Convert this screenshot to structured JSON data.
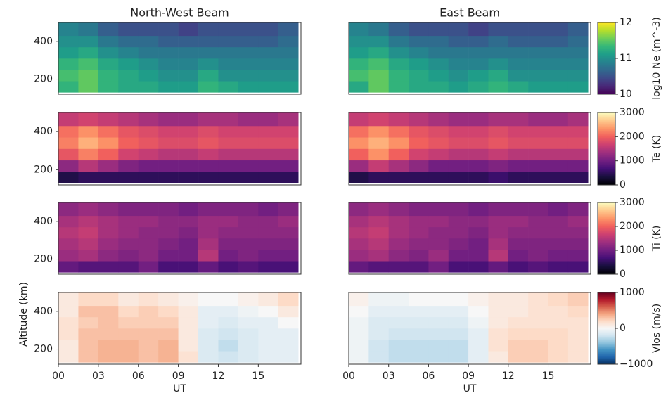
{
  "chart_data": [
    {
      "type": "heatmap",
      "title": "North-West Beam",
      "colormap": "viridis",
      "clim": [
        10,
        12
      ],
      "x": [
        0,
        1.5,
        3,
        4.5,
        6,
        7.5,
        9,
        10.5,
        12,
        13.5,
        15,
        16.5,
        18
      ],
      "y": [
        130,
        190,
        250,
        310,
        370,
        430,
        500
      ],
      "xlim": [
        0,
        18.2
      ],
      "ylim": [
        120,
        500
      ],
      "yticks": [
        200,
        400
      ],
      "values": [
        [
          11.3,
          11.5,
          11.3,
          11.2,
          11.2,
          11.1,
          11.1,
          11.3,
          11.2,
          11.1,
          11.1,
          11.1
        ],
        [
          11.4,
          11.5,
          11.3,
          11.2,
          11.1,
          11.0,
          11.0,
          11.2,
          11.0,
          11.0,
          11.0,
          11.0
        ],
        [
          11.3,
          11.4,
          11.2,
          11.1,
          11.0,
          10.9,
          10.9,
          11.0,
          10.9,
          10.9,
          10.9,
          10.9
        ],
        [
          11.1,
          11.2,
          11.0,
          10.9,
          10.8,
          10.8,
          10.8,
          10.8,
          10.8,
          10.8,
          10.8,
          10.8
        ],
        [
          11.0,
          11.0,
          10.8,
          10.7,
          10.7,
          10.6,
          10.6,
          10.6,
          10.6,
          10.6,
          10.6,
          10.7
        ],
        [
          10.9,
          10.8,
          10.6,
          10.5,
          10.5,
          10.5,
          10.4,
          10.5,
          10.5,
          10.5,
          10.5,
          10.6
        ]
      ]
    },
    {
      "type": "heatmap",
      "title": "East Beam",
      "colormap": "viridis",
      "clim": [
        10,
        12
      ],
      "x": [
        0,
        1.5,
        3,
        4.5,
        6,
        7.5,
        9,
        10.5,
        12,
        13.5,
        15,
        16.5,
        18
      ],
      "y": [
        130,
        190,
        250,
        310,
        370,
        430,
        500
      ],
      "xlim": [
        0,
        18.2
      ],
      "ylim": [
        120,
        500
      ],
      "colorbar": {
        "label": "log10 Ne (m^-3)",
        "ticks": [
          10,
          11,
          12
        ]
      },
      "values": [
        [
          11.2,
          11.5,
          11.3,
          11.2,
          11.2,
          11.1,
          11.2,
          11.3,
          11.2,
          11.1,
          11.1,
          11.1
        ],
        [
          11.4,
          11.5,
          11.3,
          11.2,
          11.1,
          11.0,
          11.1,
          11.2,
          11.0,
          11.0,
          11.0,
          11.0
        ],
        [
          11.3,
          11.4,
          11.2,
          11.1,
          11.0,
          10.9,
          10.9,
          11.0,
          10.9,
          10.9,
          10.9,
          10.9
        ],
        [
          11.1,
          11.2,
          11.0,
          10.9,
          10.8,
          10.8,
          10.8,
          10.8,
          10.8,
          10.8,
          10.8,
          10.8
        ],
        [
          11.0,
          11.0,
          10.8,
          10.7,
          10.7,
          10.6,
          10.6,
          10.7,
          10.6,
          10.6,
          10.6,
          10.7
        ],
        [
          10.9,
          10.8,
          10.6,
          10.5,
          10.5,
          10.5,
          10.4,
          10.5,
          10.5,
          10.5,
          10.5,
          10.6
        ]
      ]
    },
    {
      "type": "heatmap",
      "colormap": "magma",
      "clim": [
        0,
        3000
      ],
      "x": [
        0,
        1.5,
        3,
        4.5,
        6,
        7.5,
        9,
        10.5,
        12,
        13.5,
        15,
        16.5,
        18
      ],
      "y": [
        130,
        190,
        250,
        310,
        370,
        430,
        500
      ],
      "xlim": [
        0,
        18.2
      ],
      "ylim": [
        120,
        500
      ],
      "yticks": [
        200,
        400
      ],
      "values": [
        [
          400,
          500,
          500,
          500,
          500,
          500,
          500,
          500,
          500,
          500,
          500,
          500
        ],
        [
          1200,
          1500,
          1300,
          1100,
          1000,
          1000,
          1000,
          1000,
          1000,
          1000,
          1000,
          1000
        ],
        [
          1900,
          2200,
          2000,
          1700,
          1600,
          1500,
          1500,
          1600,
          1500,
          1500,
          1500,
          1500
        ],
        [
          2200,
          2500,
          2300,
          2000,
          1900,
          1800,
          1800,
          1900,
          1800,
          1800,
          1800,
          1800
        ],
        [
          2100,
          2300,
          2100,
          1900,
          1800,
          1700,
          1700,
          1800,
          1700,
          1700,
          1700,
          1700
        ],
        [
          1600,
          1700,
          1600,
          1500,
          1400,
          1300,
          1300,
          1400,
          1400,
          1300,
          1300,
          1400
        ]
      ]
    },
    {
      "type": "heatmap",
      "colormap": "magma",
      "clim": [
        0,
        3000
      ],
      "x": [
        0,
        1.5,
        3,
        4.5,
        6,
        7.5,
        9,
        10.5,
        12,
        13.5,
        15,
        16.5,
        18
      ],
      "y": [
        130,
        190,
        250,
        310,
        370,
        430,
        500
      ],
      "xlim": [
        0,
        18.2
      ],
      "ylim": [
        120,
        500
      ],
      "colorbar": {
        "label": "Te (K)",
        "ticks": [
          0,
          1000,
          2000,
          3000
        ]
      },
      "values": [
        [
          400,
          500,
          500,
          500,
          500,
          500,
          500,
          600,
          500,
          500,
          500,
          500
        ],
        [
          1300,
          1600,
          1400,
          1200,
          1000,
          1000,
          1000,
          1100,
          1000,
          1000,
          1000,
          1000
        ],
        [
          2000,
          2300,
          2000,
          1700,
          1600,
          1500,
          1500,
          1600,
          1500,
          1500,
          1500,
          1500
        ],
        [
          2300,
          2500,
          2300,
          2000,
          1900,
          1800,
          1800,
          1900,
          1800,
          1800,
          1800,
          1800
        ],
        [
          2100,
          2300,
          2100,
          1900,
          1800,
          1700,
          1700,
          1800,
          1700,
          1700,
          1700,
          1700
        ],
        [
          1600,
          1700,
          1600,
          1500,
          1400,
          1300,
          1300,
          1400,
          1400,
          1300,
          1300,
          1400
        ]
      ]
    },
    {
      "type": "heatmap",
      "colormap": "magma",
      "clim": [
        0,
        3000
      ],
      "x": [
        0,
        1.5,
        3,
        4.5,
        6,
        7.5,
        9,
        10.5,
        12,
        13.5,
        15,
        16.5,
        18
      ],
      "y": [
        130,
        190,
        250,
        310,
        370,
        430,
        500
      ],
      "xlim": [
        0,
        18.2
      ],
      "ylim": [
        120,
        500
      ],
      "yticks": [
        200,
        400
      ],
      "values": [
        [
          900,
          800,
          800,
          800,
          1000,
          700,
          700,
          900,
          700,
          800,
          700,
          700
        ],
        [
          1300,
          1400,
          1200,
          1100,
          1200,
          1000,
          1000,
          1500,
          1000,
          1100,
          1000,
          1000
        ],
        [
          1400,
          1500,
          1300,
          1200,
          1200,
          1100,
          1000,
          1400,
          1100,
          1100,
          1100,
          1100
        ],
        [
          1500,
          1600,
          1400,
          1300,
          1200,
          1200,
          1100,
          1300,
          1200,
          1200,
          1200,
          1200
        ],
        [
          1400,
          1500,
          1400,
          1300,
          1300,
          1200,
          1200,
          1300,
          1300,
          1200,
          1200,
          1300
        ],
        [
          1200,
          1300,
          1200,
          1100,
          1100,
          1100,
          1000,
          1100,
          1100,
          1100,
          1000,
          1100
        ]
      ]
    },
    {
      "type": "heatmap",
      "colormap": "magma",
      "clim": [
        0,
        3000
      ],
      "x": [
        0,
        1.5,
        3,
        4.5,
        6,
        7.5,
        9,
        10.5,
        12,
        13.5,
        15,
        16.5,
        18
      ],
      "y": [
        130,
        190,
        250,
        310,
        370,
        430,
        500
      ],
      "xlim": [
        0,
        18.2
      ],
      "ylim": [
        120,
        500
      ],
      "colorbar": {
        "label": "Ti (K)",
        "ticks": [
          0,
          1000,
          2000,
          3000
        ]
      },
      "values": [
        [
          900,
          800,
          800,
          800,
          1000,
          700,
          700,
          900,
          700,
          800,
          700,
          700
        ],
        [
          1300,
          1400,
          1200,
          1100,
          1300,
          1000,
          1000,
          1500,
          1000,
          1100,
          1000,
          1000
        ],
        [
          1400,
          1500,
          1300,
          1200,
          1200,
          1100,
          1000,
          1400,
          1100,
          1100,
          1100,
          1100
        ],
        [
          1500,
          1600,
          1400,
          1300,
          1200,
          1200,
          1100,
          1300,
          1200,
          1200,
          1200,
          1200
        ],
        [
          1400,
          1500,
          1400,
          1300,
          1300,
          1200,
          1200,
          1300,
          1300,
          1200,
          1200,
          1300
        ],
        [
          1200,
          1300,
          1200,
          1100,
          1100,
          1100,
          1000,
          1100,
          1100,
          1100,
          1000,
          1100
        ]
      ]
    },
    {
      "type": "heatmap",
      "colormap": "RdBu_r",
      "clim": [
        -1000,
        1000
      ],
      "xlabel": "UT",
      "ylabel": "Altitude (km)",
      "x": [
        0,
        1.5,
        3,
        4.5,
        6,
        7.5,
        9,
        10.5,
        12,
        13.5,
        15,
        16.5,
        18
      ],
      "y": [
        130,
        190,
        250,
        310,
        370,
        430,
        500
      ],
      "xlim": [
        0,
        18.2
      ],
      "ylim": [
        120,
        500
      ],
      "yticks": [
        200,
        400
      ],
      "xticks": [
        {
          "value": 0,
          "label": "00"
        },
        {
          "value": 3,
          "label": "03"
        },
        {
          "value": 6,
          "label": "06"
        },
        {
          "value": 9,
          "label": "09"
        },
        12,
        15
      ],
      "values": [
        [
          100,
          300,
          350,
          350,
          300,
          350,
          150,
          -150,
          -200,
          -150,
          -100,
          -100
        ],
        [
          100,
          300,
          350,
          350,
          300,
          350,
          100,
          -150,
          -250,
          -150,
          -100,
          -100
        ],
        [
          150,
          300,
          300,
          300,
          300,
          300,
          100,
          -150,
          -200,
          -150,
          -100,
          -100
        ],
        [
          150,
          250,
          300,
          250,
          250,
          250,
          100,
          -100,
          -150,
          -100,
          -100,
          0
        ],
        [
          100,
          300,
          300,
          200,
          250,
          200,
          100,
          -100,
          -100,
          -50,
          0,
          100
        ],
        [
          100,
          200,
          200,
          100,
          150,
          100,
          50,
          0,
          0,
          50,
          100,
          200
        ]
      ]
    },
    {
      "type": "heatmap",
      "colormap": "RdBu_r",
      "clim": [
        -1000,
        1000
      ],
      "xlabel": "UT",
      "x": [
        0,
        1.5,
        3,
        4.5,
        6,
        7.5,
        9,
        10.5,
        12,
        13.5,
        15,
        16.5,
        18
      ],
      "y": [
        130,
        190,
        250,
        310,
        370,
        430,
        500
      ],
      "xlim": [
        0,
        18.2
      ],
      "ylim": [
        120,
        500
      ],
      "xticks": [
        {
          "value": 0,
          "label": "00"
        },
        {
          "value": 3,
          "label": "03"
        },
        {
          "value": 6,
          "label": "06"
        },
        {
          "value": 9,
          "label": "09"
        },
        12,
        15
      ],
      "colorbar": {
        "label": "Vlos (m/s)",
        "ticks": [
          {
            "value": -1000,
            "label": "−1000"
          },
          0,
          1000
        ]
      },
      "values": [
        [
          -50,
          -200,
          -250,
          -250,
          -250,
          -250,
          -100,
          100,
          250,
          250,
          200,
          150
        ],
        [
          -50,
          -200,
          -250,
          -250,
          -250,
          -250,
          -100,
          150,
          250,
          250,
          200,
          150
        ],
        [
          -50,
          -150,
          -200,
          -200,
          -200,
          -200,
          -100,
          150,
          200,
          200,
          200,
          150
        ],
        [
          -50,
          -150,
          -150,
          -150,
          -150,
          -150,
          -50,
          100,
          150,
          150,
          150,
          150
        ],
        [
          0,
          -100,
          -100,
          -100,
          -100,
          -100,
          0,
          100,
          100,
          150,
          150,
          200
        ],
        [
          50,
          -50,
          -50,
          0,
          0,
          0,
          50,
          100,
          100,
          150,
          200,
          250
        ]
      ]
    }
  ]
}
